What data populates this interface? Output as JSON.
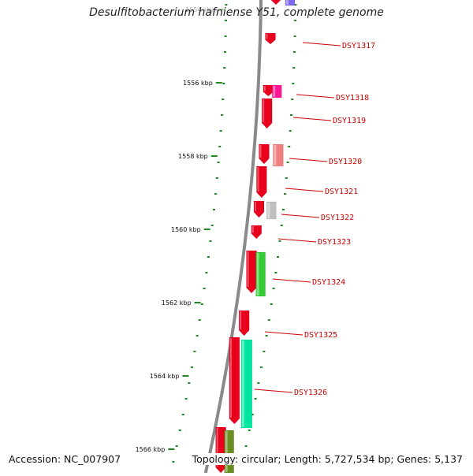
{
  "title": "Desulfitobacterium hafniense Y51, complete genome",
  "footer": {
    "accession": "Accession: NC_007907",
    "topology": "Topology: circular; Length: 5,727,534 bp; Genes: 5,137"
  },
  "ticks": [
    {
      "label": "1554 kbp",
      "faded": true
    },
    {
      "label": "1556 kbp"
    },
    {
      "label": "1558 kbp"
    },
    {
      "label": "1560 kbp"
    },
    {
      "label": "1562 kbp"
    },
    {
      "label": "1564 kbp"
    },
    {
      "label": "1566 kbp"
    }
  ],
  "genes": [
    {
      "name": "DSY1317",
      "color": "#e8001c"
    },
    {
      "name": "DSY1318",
      "color": "#e8001c"
    },
    {
      "name": "DSY1319",
      "color": "#e8001c"
    },
    {
      "name": "DSY1320",
      "color": "#e8001c"
    },
    {
      "name": "DSY1321",
      "color": "#e8001c"
    },
    {
      "name": "DSY1322",
      "color": "#e8001c"
    },
    {
      "name": "DSY1323",
      "color": "#e8001c"
    },
    {
      "name": "DSY1324",
      "color": "#e8001c"
    },
    {
      "name": "DSY1325",
      "color": "#e8001c"
    },
    {
      "name": "DSY1326",
      "color": "#e8001c"
    }
  ],
  "colors": {
    "backbone": "#8a8a8a",
    "tick": "#1e8a1e",
    "label_line": "#cc0000",
    "gene_label": "#cc0000",
    "cog_magenta": "#ff1493",
    "cog_salmon": "#f08080",
    "cog_gray": "#c0c0c0",
    "cog_green": "#33cc33",
    "cog_mint": "#00e6a0",
    "cog_olive": "#6b8e23",
    "cog_purple": "#7b68ee"
  }
}
